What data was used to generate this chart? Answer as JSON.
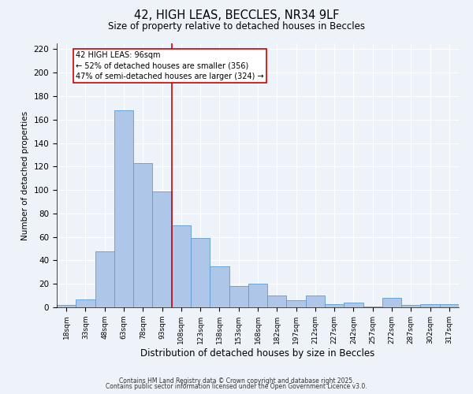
{
  "title_line1": "42, HIGH LEAS, BECCLES, NR34 9LF",
  "title_line2": "Size of property relative to detached houses in Beccles",
  "xlabel": "Distribution of detached houses by size in Beccles",
  "ylabel": "Number of detached properties",
  "bar_labels": [
    "18sqm",
    "33sqm",
    "48sqm",
    "63sqm",
    "78sqm",
    "93sqm",
    "108sqm",
    "123sqm",
    "138sqm",
    "153sqm",
    "168sqm",
    "182sqm",
    "197sqm",
    "212sqm",
    "227sqm",
    "242sqm",
    "257sqm",
    "272sqm",
    "287sqm",
    "302sqm",
    "317sqm"
  ],
  "bar_values": [
    2,
    7,
    48,
    168,
    123,
    99,
    70,
    59,
    35,
    18,
    20,
    10,
    6,
    10,
    3,
    4,
    1,
    8,
    2,
    3,
    3
  ],
  "bar_color": "#aec6e8",
  "bar_edge_color": "#5b9bd5",
  "background_color": "#eef2f9",
  "grid_color": "#ffffff",
  "redline_x": 5.5,
  "annotation_title": "42 HIGH LEAS: 96sqm",
  "annotation_line1": "← 52% of detached houses are smaller (356)",
  "annotation_line2": "47% of semi-detached houses are larger (324) →",
  "annotation_box_color": "#ffffff",
  "annotation_border_color": "#cc0000",
  "redline_color": "#cc0000",
  "ylim": [
    0,
    225
  ],
  "yticks": [
    0,
    20,
    40,
    60,
    80,
    100,
    120,
    140,
    160,
    180,
    200,
    220
  ],
  "footnote1": "Contains HM Land Registry data © Crown copyright and database right 2025.",
  "footnote2": "Contains public sector information licensed under the Open Government Licence v3.0."
}
